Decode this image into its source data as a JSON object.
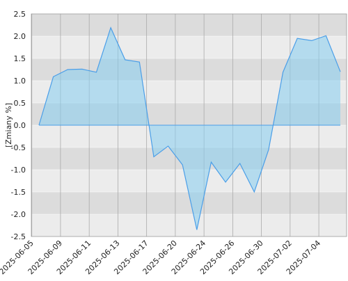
{
  "chart_data": {
    "type": "area",
    "y_label": "[Zmiany %]",
    "categories": [
      "2025-06-05",
      null,
      "2025-06-09",
      null,
      "2025-06-11",
      null,
      "2025-06-13",
      null,
      "2025-06-17",
      null,
      "2025-06-20",
      null,
      "2025-06-24",
      null,
      "2025-06-26",
      null,
      "2025-06-30",
      null,
      "2025-07-02",
      null,
      "2025-07-04",
      null
    ],
    "series": [
      {
        "color": "#4a9ee8",
        "values": [
          0,
          1.09,
          1.25,
          1.26,
          1.19,
          2.19,
          1.47,
          1.42,
          -0.71,
          -0.47,
          -0.89,
          -2.35,
          -0.83,
          -1.28,
          -0.86,
          -1.5,
          -0.55,
          1.19,
          1.95,
          1.9,
          2.01,
          1.2
        ]
      }
    ],
    "ylim": [
      -2.5,
      2.5
    ],
    "yticks": [
      {
        "value": -2.5,
        "label": "-2.5"
      },
      {
        "value": -2,
        "label": "-2.0"
      },
      {
        "value": -1.5,
        "label": "-1.5"
      },
      {
        "value": -1,
        "label": "-1.0"
      },
      {
        "value": -0.5,
        "label": "-0.5"
      },
      {
        "value": 0,
        "label": "0.0"
      },
      {
        "value": 0.5,
        "label": "0.5"
      },
      {
        "value": 1,
        "label": "1.0"
      },
      {
        "value": 1.5,
        "label": "1.5"
      },
      {
        "value": 2,
        "label": "2.0"
      },
      {
        "value": 2.5,
        "label": "2.5"
      }
    ],
    "grid": true
  }
}
